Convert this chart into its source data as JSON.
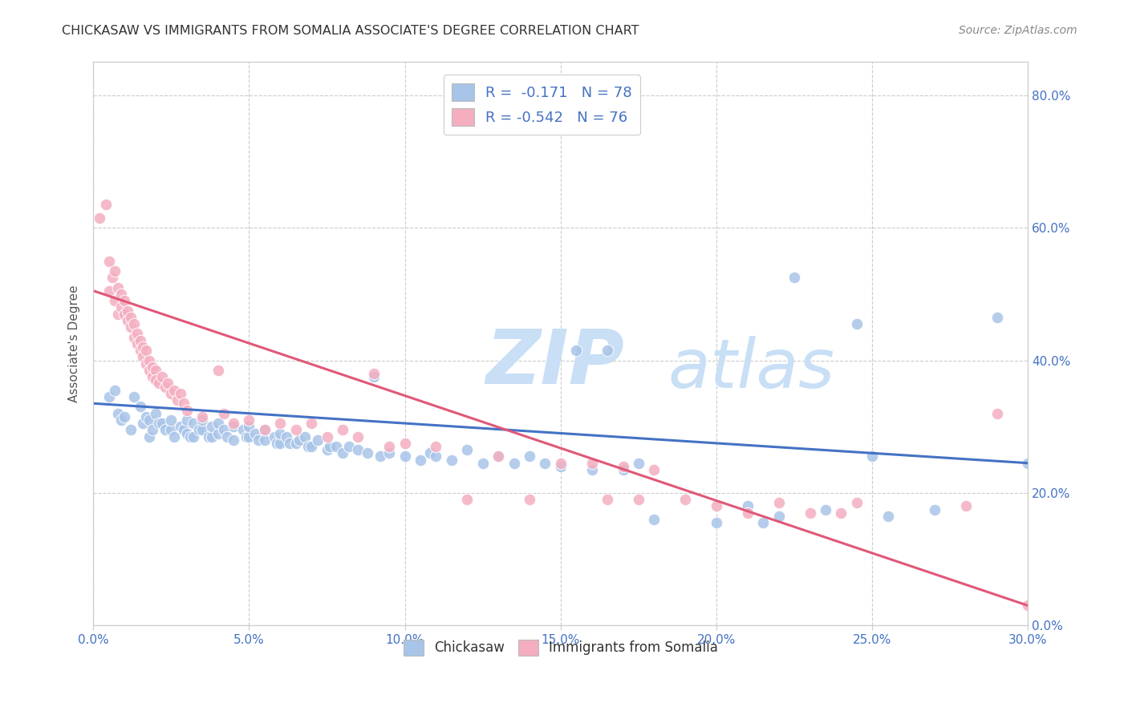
{
  "title": "CHICKASAW VS IMMIGRANTS FROM SOMALIA ASSOCIATE'S DEGREE CORRELATION CHART",
  "source": "Source: ZipAtlas.com",
  "ylabel": "Associate's Degree",
  "color_blue": "#a8c4e8",
  "color_pink": "#f4aec0",
  "line_blue": "#4472c4",
  "line_pink": "#e05878",
  "watermark_zip": "ZIP",
  "watermark_atlas": "atlas",
  "watermark_color": "#c8dff5",
  "title_color": "#333333",
  "axis_label_color": "#4472c4",
  "xlim": [
    0.0,
    0.3
  ],
  "ylim": [
    0.0,
    0.85
  ],
  "xtick_vals": [
    0.0,
    0.05,
    0.1,
    0.15,
    0.2,
    0.25,
    0.3
  ],
  "ytick_vals": [
    0.0,
    0.2,
    0.4,
    0.6,
    0.8
  ],
  "blue_scatter": [
    [
      0.005,
      0.345
    ],
    [
      0.007,
      0.355
    ],
    [
      0.008,
      0.32
    ],
    [
      0.009,
      0.31
    ],
    [
      0.01,
      0.315
    ],
    [
      0.012,
      0.295
    ],
    [
      0.013,
      0.345
    ],
    [
      0.015,
      0.33
    ],
    [
      0.016,
      0.305
    ],
    [
      0.017,
      0.315
    ],
    [
      0.018,
      0.285
    ],
    [
      0.018,
      0.31
    ],
    [
      0.019,
      0.295
    ],
    [
      0.02,
      0.32
    ],
    [
      0.021,
      0.305
    ],
    [
      0.022,
      0.305
    ],
    [
      0.023,
      0.295
    ],
    [
      0.025,
      0.295
    ],
    [
      0.025,
      0.31
    ],
    [
      0.026,
      0.285
    ],
    [
      0.028,
      0.3
    ],
    [
      0.029,
      0.295
    ],
    [
      0.03,
      0.29
    ],
    [
      0.03,
      0.31
    ],
    [
      0.031,
      0.285
    ],
    [
      0.032,
      0.285
    ],
    [
      0.032,
      0.305
    ],
    [
      0.034,
      0.295
    ],
    [
      0.035,
      0.295
    ],
    [
      0.035,
      0.31
    ],
    [
      0.037,
      0.285
    ],
    [
      0.038,
      0.285
    ],
    [
      0.038,
      0.3
    ],
    [
      0.04,
      0.29
    ],
    [
      0.04,
      0.305
    ],
    [
      0.042,
      0.295
    ],
    [
      0.043,
      0.285
    ],
    [
      0.045,
      0.28
    ],
    [
      0.045,
      0.3
    ],
    [
      0.048,
      0.295
    ],
    [
      0.049,
      0.285
    ],
    [
      0.05,
      0.285
    ],
    [
      0.05,
      0.3
    ],
    [
      0.052,
      0.29
    ],
    [
      0.053,
      0.28
    ],
    [
      0.055,
      0.28
    ],
    [
      0.055,
      0.295
    ],
    [
      0.058,
      0.285
    ],
    [
      0.059,
      0.275
    ],
    [
      0.06,
      0.275
    ],
    [
      0.06,
      0.29
    ],
    [
      0.062,
      0.285
    ],
    [
      0.063,
      0.275
    ],
    [
      0.065,
      0.275
    ],
    [
      0.066,
      0.28
    ],
    [
      0.068,
      0.285
    ],
    [
      0.069,
      0.27
    ],
    [
      0.07,
      0.27
    ],
    [
      0.072,
      0.28
    ],
    [
      0.075,
      0.265
    ],
    [
      0.076,
      0.27
    ],
    [
      0.078,
      0.27
    ],
    [
      0.08,
      0.26
    ],
    [
      0.082,
      0.27
    ],
    [
      0.085,
      0.265
    ],
    [
      0.088,
      0.26
    ],
    [
      0.09,
      0.375
    ],
    [
      0.092,
      0.255
    ],
    [
      0.095,
      0.26
    ],
    [
      0.1,
      0.255
    ],
    [
      0.105,
      0.25
    ],
    [
      0.108,
      0.26
    ],
    [
      0.11,
      0.255
    ],
    [
      0.115,
      0.25
    ],
    [
      0.12,
      0.265
    ],
    [
      0.125,
      0.245
    ],
    [
      0.13,
      0.255
    ],
    [
      0.135,
      0.245
    ],
    [
      0.14,
      0.255
    ],
    [
      0.145,
      0.245
    ],
    [
      0.15,
      0.24
    ],
    [
      0.155,
      0.415
    ],
    [
      0.16,
      0.235
    ],
    [
      0.165,
      0.415
    ],
    [
      0.17,
      0.235
    ],
    [
      0.175,
      0.245
    ],
    [
      0.18,
      0.16
    ],
    [
      0.2,
      0.155
    ],
    [
      0.21,
      0.18
    ],
    [
      0.215,
      0.155
    ],
    [
      0.22,
      0.165
    ],
    [
      0.225,
      0.525
    ],
    [
      0.235,
      0.175
    ],
    [
      0.245,
      0.455
    ],
    [
      0.25,
      0.255
    ],
    [
      0.255,
      0.165
    ],
    [
      0.27,
      0.175
    ],
    [
      0.29,
      0.465
    ],
    [
      0.3,
      0.245
    ]
  ],
  "pink_scatter": [
    [
      0.002,
      0.615
    ],
    [
      0.004,
      0.635
    ],
    [
      0.005,
      0.55
    ],
    [
      0.005,
      0.505
    ],
    [
      0.006,
      0.525
    ],
    [
      0.007,
      0.49
    ],
    [
      0.007,
      0.535
    ],
    [
      0.008,
      0.51
    ],
    [
      0.008,
      0.47
    ],
    [
      0.009,
      0.5
    ],
    [
      0.009,
      0.48
    ],
    [
      0.01,
      0.47
    ],
    [
      0.01,
      0.49
    ],
    [
      0.011,
      0.46
    ],
    [
      0.011,
      0.475
    ],
    [
      0.012,
      0.45
    ],
    [
      0.012,
      0.465
    ],
    [
      0.013,
      0.435
    ],
    [
      0.013,
      0.455
    ],
    [
      0.014,
      0.44
    ],
    [
      0.014,
      0.425
    ],
    [
      0.015,
      0.43
    ],
    [
      0.015,
      0.415
    ],
    [
      0.016,
      0.42
    ],
    [
      0.016,
      0.405
    ],
    [
      0.017,
      0.415
    ],
    [
      0.017,
      0.395
    ],
    [
      0.018,
      0.4
    ],
    [
      0.018,
      0.385
    ],
    [
      0.019,
      0.39
    ],
    [
      0.019,
      0.375
    ],
    [
      0.02,
      0.385
    ],
    [
      0.02,
      0.37
    ],
    [
      0.021,
      0.365
    ],
    [
      0.022,
      0.375
    ],
    [
      0.023,
      0.36
    ],
    [
      0.024,
      0.365
    ],
    [
      0.025,
      0.35
    ],
    [
      0.026,
      0.355
    ],
    [
      0.027,
      0.34
    ],
    [
      0.028,
      0.35
    ],
    [
      0.029,
      0.335
    ],
    [
      0.03,
      0.325
    ],
    [
      0.035,
      0.315
    ],
    [
      0.04,
      0.385
    ],
    [
      0.042,
      0.32
    ],
    [
      0.045,
      0.305
    ],
    [
      0.05,
      0.31
    ],
    [
      0.055,
      0.295
    ],
    [
      0.06,
      0.305
    ],
    [
      0.065,
      0.295
    ],
    [
      0.07,
      0.305
    ],
    [
      0.075,
      0.285
    ],
    [
      0.08,
      0.295
    ],
    [
      0.085,
      0.285
    ],
    [
      0.09,
      0.38
    ],
    [
      0.095,
      0.27
    ],
    [
      0.1,
      0.275
    ],
    [
      0.11,
      0.27
    ],
    [
      0.12,
      0.19
    ],
    [
      0.13,
      0.255
    ],
    [
      0.14,
      0.19
    ],
    [
      0.15,
      0.245
    ],
    [
      0.16,
      0.245
    ],
    [
      0.165,
      0.19
    ],
    [
      0.17,
      0.24
    ],
    [
      0.175,
      0.19
    ],
    [
      0.18,
      0.235
    ],
    [
      0.19,
      0.19
    ],
    [
      0.2,
      0.18
    ],
    [
      0.21,
      0.17
    ],
    [
      0.22,
      0.185
    ],
    [
      0.23,
      0.17
    ],
    [
      0.24,
      0.17
    ],
    [
      0.245,
      0.185
    ],
    [
      0.28,
      0.18
    ],
    [
      0.29,
      0.32
    ],
    [
      0.3,
      0.03
    ]
  ],
  "blue_line": [
    [
      0.0,
      0.335
    ],
    [
      0.3,
      0.245
    ]
  ],
  "pink_line": [
    [
      0.0,
      0.505
    ],
    [
      0.3,
      0.03
    ]
  ]
}
